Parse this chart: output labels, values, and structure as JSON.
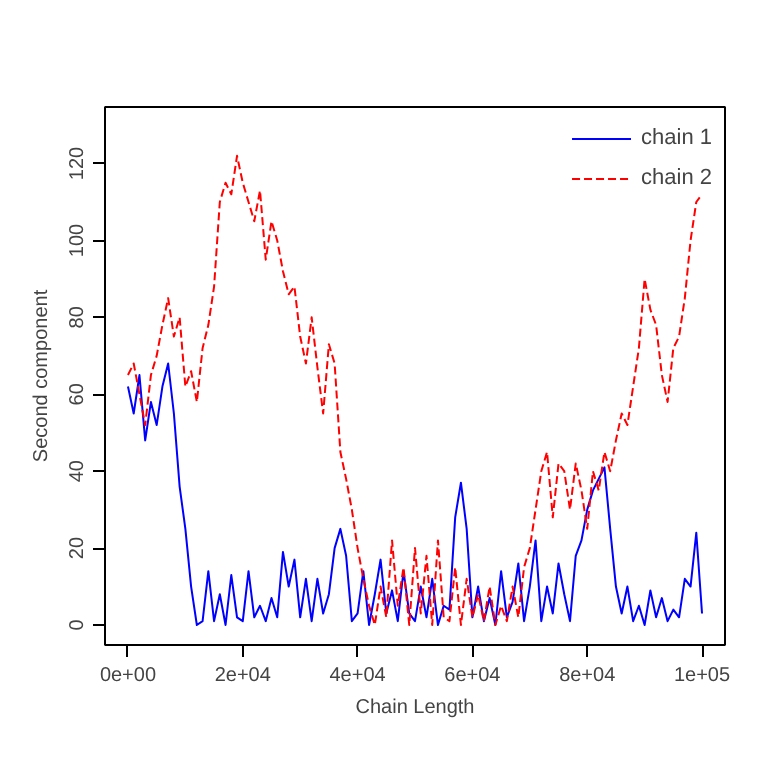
{
  "chart_data": {
    "type": "line",
    "xlabel": "Chain Length",
    "ylabel": "Second component",
    "x": [
      0,
      1000,
      2000,
      3000,
      4000,
      5000,
      6000,
      7000,
      8000,
      9000,
      10000,
      11000,
      12000,
      13000,
      14000,
      15000,
      16000,
      17000,
      18000,
      19000,
      20000,
      21000,
      22000,
      23000,
      24000,
      25000,
      26000,
      27000,
      28000,
      29000,
      30000,
      31000,
      32000,
      33000,
      34000,
      35000,
      36000,
      37000,
      38000,
      39000,
      40000,
      41000,
      42000,
      43000,
      44000,
      45000,
      46000,
      47000,
      48000,
      49000,
      50000,
      51000,
      52000,
      53000,
      54000,
      55000,
      56000,
      57000,
      58000,
      59000,
      60000,
      61000,
      62000,
      63000,
      64000,
      65000,
      66000,
      67000,
      68000,
      69000,
      70000,
      71000,
      72000,
      73000,
      74000,
      75000,
      76000,
      77000,
      78000,
      79000,
      80000,
      81000,
      82000,
      83000,
      84000,
      85000,
      86000,
      87000,
      88000,
      89000,
      90000,
      91000,
      92000,
      93000,
      94000,
      95000,
      96000,
      97000,
      98000,
      99000,
      100000
    ],
    "series": [
      {
        "name": "chain 1",
        "color": "#0000ff",
        "line_style": "solid",
        "values": [
          62,
          55,
          65,
          48,
          58,
          52,
          62,
          68,
          55,
          36,
          25,
          10,
          0,
          1,
          14,
          1,
          8,
          0,
          13,
          2,
          1,
          14,
          2,
          5,
          1,
          7,
          2,
          19,
          10,
          17,
          2,
          12,
          1,
          12,
          3,
          8,
          20,
          25,
          18,
          1,
          3,
          14,
          0,
          8,
          17,
          3,
          9,
          1,
          14,
          3,
          1,
          10,
          2,
          12,
          0,
          5,
          4,
          28,
          37,
          25,
          2,
          10,
          1,
          7,
          0,
          14,
          2,
          6,
          16,
          1,
          10,
          22,
          1,
          10,
          3,
          16,
          8,
          1,
          18,
          22,
          30,
          35,
          38,
          41,
          25,
          10,
          3,
          10,
          1,
          5,
          0,
          9,
          2,
          7,
          1,
          4,
          2,
          12,
          10,
          24,
          3
        ]
      },
      {
        "name": "chain 2",
        "color": "#ff0000",
        "line_style": "dashed",
        "values": [
          65,
          68,
          60,
          52,
          65,
          70,
          78,
          85,
          75,
          80,
          62,
          66,
          58,
          72,
          78,
          88,
          110,
          115,
          112,
          122,
          115,
          110,
          105,
          113,
          95,
          105,
          100,
          92,
          86,
          88,
          75,
          68,
          80,
          67,
          55,
          73,
          68,
          45,
          38,
          30,
          20,
          12,
          5,
          0,
          10,
          2,
          22,
          5,
          15,
          0,
          20,
          3,
          18,
          0,
          22,
          2,
          1,
          15,
          0,
          12,
          2,
          8,
          1,
          10,
          0,
          5,
          1,
          10,
          2,
          15,
          20,
          30,
          40,
          45,
          28,
          42,
          40,
          30,
          42,
          35,
          25,
          40,
          35,
          45,
          40,
          48,
          55,
          52,
          62,
          72,
          90,
          82,
          78,
          65,
          58,
          72,
          75,
          85,
          100,
          110,
          112
        ]
      }
    ],
    "xlim": [
      -4000,
      104000
    ],
    "ylim": [
      -5.2,
      134.7
    ],
    "xticks": [
      {
        "value": 0,
        "label": "0e+00"
      },
      {
        "value": 20000,
        "label": "2e+04"
      },
      {
        "value": 40000,
        "label": "4e+04"
      },
      {
        "value": 60000,
        "label": "6e+04"
      },
      {
        "value": 80000,
        "label": "8e+04"
      },
      {
        "value": 100000,
        "label": "1e+05"
      }
    ],
    "yticks": [
      0,
      20,
      40,
      60,
      80,
      100,
      120
    ],
    "legend": "top right",
    "grid": false
  }
}
